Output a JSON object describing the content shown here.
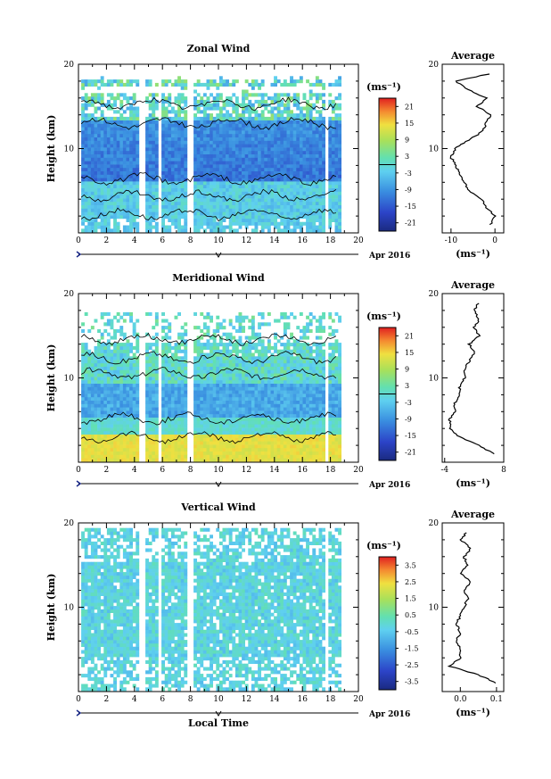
{
  "chart_data": [
    {
      "type": "heatmap",
      "title": "Zonal Wind",
      "ylabel": "Height (km)",
      "ylim": [
        0,
        20
      ],
      "yticks": [
        "20",
        "10"
      ],
      "xlim": [
        0,
        20
      ],
      "xticks": [
        "0",
        "2",
        "4",
        "6",
        "8",
        "10",
        "12",
        "14",
        "16",
        "18",
        "20"
      ],
      "date_label": "Apr 2016",
      "colorbar": {
        "unit": "(ms⁻¹)",
        "ticks": [
          "21",
          "15",
          "9",
          "3",
          "-3",
          "-9",
          "-15",
          "-21"
        ],
        "range": [
          -24,
          24
        ],
        "contour": 0
      },
      "data_gaps_local_time": [
        [
          4.3,
          4.7
        ],
        [
          5.5,
          5.9
        ],
        [
          7.6,
          8.0
        ],
        [
          17.5,
          17.8
        ]
      ],
      "average_profile": {
        "title": "Average",
        "xlabel": "(ms⁻¹)",
        "xticks": [
          "-10",
          "0"
        ],
        "xlim": [
          -12,
          2
        ],
        "yticks": [
          "20",
          "10"
        ],
        "height_km": [
          1,
          2,
          3,
          4,
          5,
          6,
          7,
          8,
          9,
          10,
          11,
          12,
          13,
          14,
          15,
          16,
          17,
          18,
          19
        ],
        "values": [
          -1,
          0,
          -2,
          -3,
          -6,
          -7,
          -8,
          -9,
          -10,
          -9,
          -6,
          -3,
          -2,
          -1,
          -4,
          -2,
          -6,
          -9,
          0
        ]
      }
    },
    {
      "type": "heatmap",
      "title": "Meridional Wind",
      "ylabel": "Height (km)",
      "ylim": [
        0,
        20
      ],
      "yticks": [
        "20",
        "10"
      ],
      "xlim": [
        0,
        20
      ],
      "xticks": [
        "0",
        "2",
        "4",
        "6",
        "8",
        "10",
        "12",
        "14",
        "16",
        "18",
        "20"
      ],
      "date_label": "Apr 2016",
      "colorbar": {
        "unit": "(ms⁻¹)",
        "ticks": [
          "21",
          "15",
          "9",
          "3",
          "-3",
          "-9",
          "-15",
          "-21"
        ],
        "range": [
          -24,
          24
        ],
        "contour": 0
      },
      "data_gaps_local_time": [
        [
          4.3,
          4.7
        ],
        [
          5.5,
          5.9
        ],
        [
          7.6,
          8.0
        ],
        [
          17.5,
          17.8
        ]
      ],
      "average_profile": {
        "title": "Average",
        "xlabel": "(ms⁻¹)",
        "xticks": [
          "-4",
          "8"
        ],
        "xlim": [
          -4.5,
          8
        ],
        "yticks": [
          "20",
          "10"
        ],
        "height_km": [
          1,
          2,
          3,
          4,
          5,
          6,
          7,
          8,
          9,
          10,
          11,
          12,
          13,
          14,
          15,
          16,
          17,
          18,
          19
        ],
        "values": [
          6,
          3,
          -1,
          -3,
          -3,
          -2,
          -2,
          -1,
          -1,
          0,
          0,
          1,
          2,
          1,
          3,
          2,
          3,
          2,
          3
        ]
      }
    },
    {
      "type": "heatmap",
      "title": "Vertical Wind",
      "xlabel": "Local Time",
      "ylabel": "Height (km)",
      "ylim": [
        0,
        20
      ],
      "yticks": [
        "20",
        "10"
      ],
      "xlim": [
        0,
        20
      ],
      "xticks": [
        "0",
        "2",
        "4",
        "6",
        "8",
        "10",
        "12",
        "14",
        "16",
        "18",
        "20"
      ],
      "date_label": "Apr 2016",
      "colorbar": {
        "unit": "(ms⁻¹)",
        "ticks": [
          "3.5",
          "2.5",
          "1.5",
          "0.5",
          "-0.5",
          "-1.5",
          "-2.5",
          "-3.5"
        ],
        "range": [
          -4,
          4
        ]
      },
      "data_gaps_local_time": [
        [
          4.3,
          4.7
        ],
        [
          5.5,
          5.9
        ],
        [
          7.6,
          8.0
        ],
        [
          17.5,
          17.8
        ]
      ],
      "average_profile": {
        "title": "Average",
        "xlabel": "(ms⁻¹)",
        "xticks": [
          "0.0",
          "0.1"
        ],
        "xlim": [
          -0.05,
          0.12
        ],
        "yticks": [
          "20",
          "10"
        ],
        "height_km": [
          1,
          2,
          3,
          4,
          5,
          6,
          7,
          8,
          9,
          10,
          11,
          12,
          13,
          14,
          15,
          16,
          17,
          18,
          19
        ],
        "values": [
          0.1,
          0.05,
          -0.03,
          0.0,
          0.0,
          -0.01,
          0.0,
          -0.01,
          0.0,
          0.01,
          0.02,
          0.01,
          0.03,
          0.0,
          0.02,
          0.01,
          0.03,
          0.0,
          0.02
        ]
      }
    }
  ]
}
